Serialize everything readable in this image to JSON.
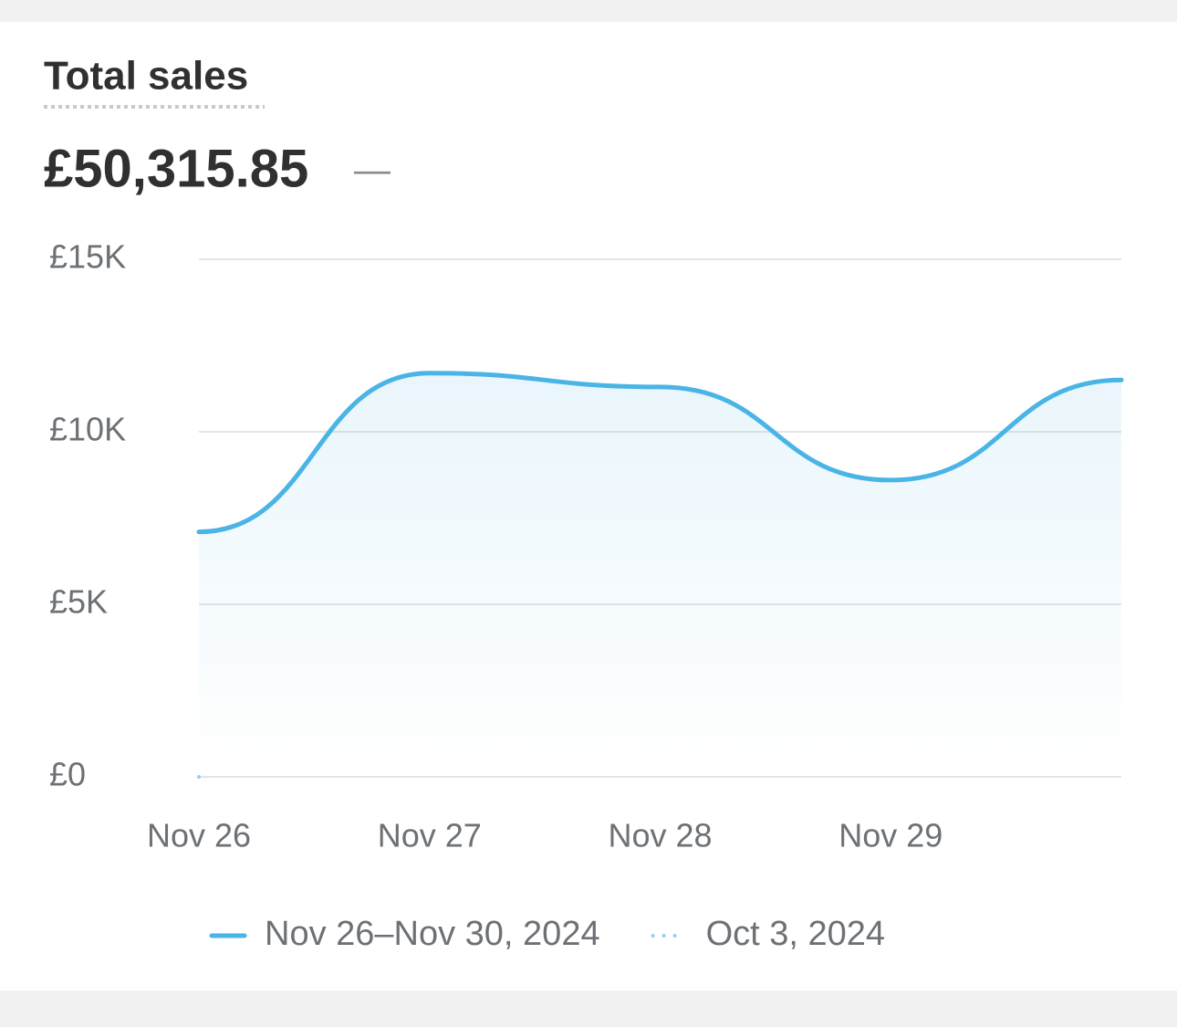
{
  "chart_data": {
    "type": "line",
    "title": "Total sales",
    "total": "£50,315.85",
    "change": "—",
    "categories": [
      "Nov 26",
      "Nov 27",
      "Nov 28",
      "Nov 29",
      null
    ],
    "series": [
      {
        "name": "Nov 26–Nov 30, 2024",
        "color": "#4bb4e6",
        "line_style": "solid",
        "values": [
          7100,
          11700,
          11300,
          8600,
          11500
        ]
      },
      {
        "name": "Oct 3, 2024",
        "color": "#8fd0f0",
        "line_style": "dotted",
        "values": [
          0,
          null,
          null,
          null,
          null
        ]
      }
    ],
    "ylim": [
      0,
      15000
    ],
    "yticks": [
      {
        "value": 0,
        "label": "£0"
      },
      {
        "value": 5000,
        "label": "£5K"
      },
      {
        "value": 10000,
        "label": "£10K"
      },
      {
        "value": 15000,
        "label": "£15K"
      }
    ],
    "grid": true
  }
}
